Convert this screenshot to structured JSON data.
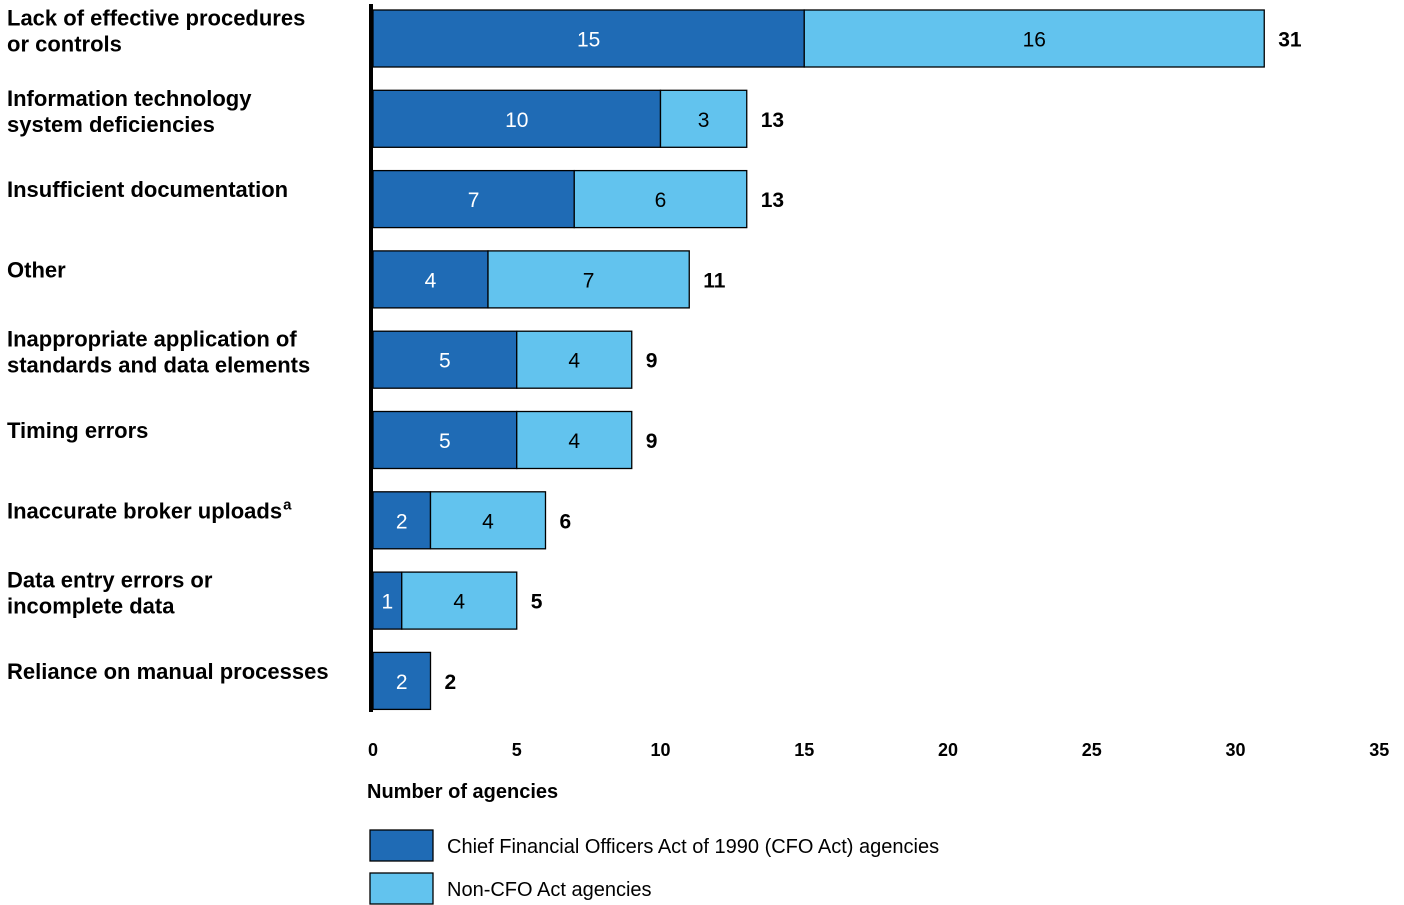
{
  "chart_data": {
    "type": "bar",
    "orientation": "horizontal",
    "stacked": true,
    "categories": [
      {
        "lines": [
          "Lack of effective procedures",
          "or controls"
        ],
        "sup": ""
      },
      {
        "lines": [
          "Information technology",
          "system deficiencies"
        ],
        "sup": ""
      },
      {
        "lines": [
          "Insufficient documentation"
        ],
        "sup": ""
      },
      {
        "lines": [
          "Other"
        ],
        "sup": ""
      },
      {
        "lines": [
          "Inappropriate application of",
          "standards and data elements"
        ],
        "sup": ""
      },
      {
        "lines": [
          "Timing errors"
        ],
        "sup": ""
      },
      {
        "lines": [
          "Inaccurate broker uploads"
        ],
        "sup": "a"
      },
      {
        "lines": [
          "Data entry errors or",
          "incomplete data"
        ],
        "sup": ""
      },
      {
        "lines": [
          "Reliance on manual processes"
        ],
        "sup": ""
      }
    ],
    "series": [
      {
        "name": "Chief Financial Officers Act of 1990 (CFO Act) agencies",
        "color": "#1f6bb5",
        "label_color": "#ffffff",
        "values": [
          15,
          10,
          7,
          4,
          5,
          5,
          2,
          1,
          2
        ]
      },
      {
        "name": "Non-CFO Act agencies",
        "color": "#62c3ee",
        "label_color": "#000000",
        "values": [
          16,
          3,
          6,
          7,
          4,
          4,
          4,
          4,
          0
        ]
      }
    ],
    "totals": [
      31,
      13,
      13,
      11,
      9,
      9,
      6,
      5,
      2
    ],
    "xlim": [
      0,
      35
    ],
    "xticks": [
      0,
      5,
      10,
      15,
      20,
      25,
      30,
      35
    ],
    "xlabel": "Number of agencies",
    "ylabel": "",
    "title": "",
    "grid": false,
    "legend_position": "bottom-left"
  }
}
